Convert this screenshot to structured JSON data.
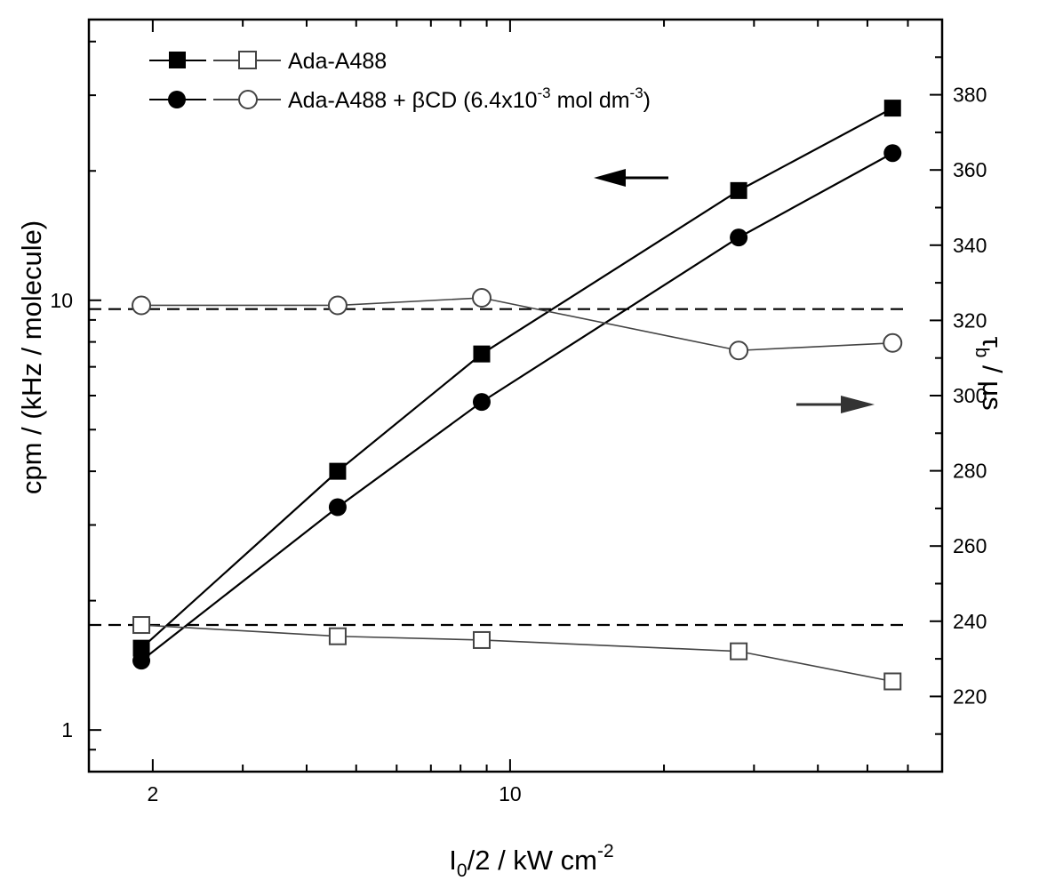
{
  "chart_data": {
    "type": "line",
    "x_scale": "log",
    "xlabel": {
      "main": "I",
      "sub": "0",
      "rest": "/2 / kW cm",
      "sup": "-2"
    },
    "ylabel_left": "cpm / (kHz / molecule)",
    "ylabel_right": {
      "main": "τ",
      "sub": "b",
      "rest": " / μs"
    },
    "y_left_scale": "log",
    "xlim": [
      1.5,
      70
    ],
    "ylim_left": [
      0.8,
      45
    ],
    "ylim_right": [
      200,
      400
    ],
    "x_ticks": [
      "2",
      "10"
    ],
    "y_left_ticks": [
      "1",
      "10"
    ],
    "y_right_ticks": [
      "220",
      "240",
      "260",
      "280",
      "300",
      "320",
      "340",
      "360",
      "380"
    ],
    "grid": false,
    "legend_position": "top-left",
    "legend": [
      {
        "label": "Ada-A488",
        "filled_marker": "square",
        "open_marker": "square"
      },
      {
        "label_pre": "Ada-A488 + βCD (6.4x10",
        "label_sup": "-3",
        "label_mid": " mol dm",
        "label_sup2": "-3",
        "label_post": ")",
        "filled_marker": "circle",
        "open_marker": "circle"
      }
    ],
    "x": [
      1.9,
      4.6,
      8.8,
      28,
      56
    ],
    "series": [
      {
        "name": "Ada-A488",
        "axis": "left",
        "marker": "filled-square",
        "values": [
          1.55,
          4.0,
          7.5,
          18,
          28
        ]
      },
      {
        "name": "Ada-A488 + βCD (6.4x10-3 mol dm-3)",
        "axis": "left",
        "marker": "filled-circle",
        "values": [
          1.45,
          3.3,
          5.8,
          14,
          22
        ]
      },
      {
        "name": "Ada-A488",
        "axis": "right",
        "marker": "open-square",
        "values": [
          239,
          236,
          235,
          232,
          224
        ]
      },
      {
        "name": "Ada-A488 + βCD (6.4x10-3 mol dm-3)",
        "axis": "right",
        "marker": "open-circle",
        "values": [
          324,
          324,
          326,
          312,
          314
        ]
      }
    ],
    "reference_lines_right": [
      239,
      323
    ],
    "arrows": [
      {
        "points_to": "left-axis",
        "color": "#000000"
      },
      {
        "points_to": "right-axis",
        "color": "#333333"
      }
    ],
    "colors": {
      "filled_series": "#000000",
      "open_series": "#444444",
      "open_fill": "#ffffff"
    }
  }
}
